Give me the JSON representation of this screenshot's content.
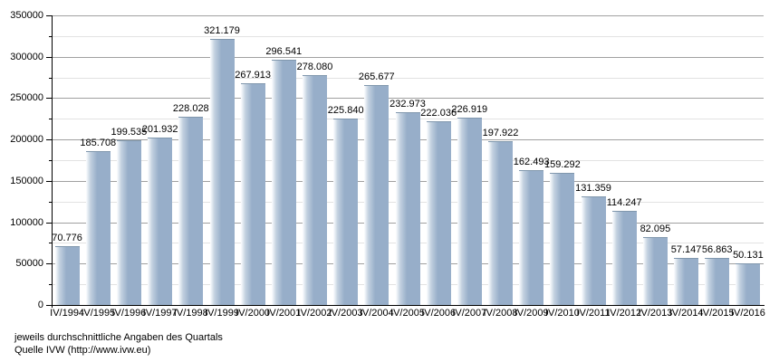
{
  "chart_data": {
    "type": "bar",
    "title": "",
    "xlabel": "",
    "ylabel": "",
    "categories": [
      "IV/1994",
      "IV/1995",
      "IV/1996",
      "IV/1997",
      "IV/1998",
      "IV/1999",
      "IV/2000",
      "IV/2001",
      "IV/2002",
      "IV/2003",
      "IV/2004",
      "IV/2005",
      "IV/2006",
      "IV/2007",
      "IV/2008",
      "IV/2009",
      "IV/2010",
      "IV/2011",
      "IV/2012",
      "IV/2013",
      "IV/2014",
      "IV/2015",
      "IV/2016"
    ],
    "values": [
      70776,
      185708,
      199535,
      201932,
      228028,
      321179,
      267913,
      296541,
      278080,
      225840,
      265677,
      232973,
      222036,
      226919,
      197922,
      162493,
      159292,
      131359,
      114247,
      82095,
      57147,
      56863,
      50131
    ],
    "value_labels": [
      "70.776",
      "185.708",
      "199.535",
      "201.932",
      "228.028",
      "321.179",
      "267.913",
      "296.541",
      "278.080",
      "225.840",
      "265.677",
      "232.973",
      "222.036",
      "226.919",
      "197.922",
      "162.493",
      "159.292",
      "131.359",
      "114.247",
      "82.095",
      "57.147",
      "56.863",
      "50.131"
    ],
    "ylim": [
      0,
      350000
    ],
    "y_major_step": 50000,
    "y_minor_step": 25000,
    "y_tick_labels": [
      "0",
      "50000",
      "100000",
      "150000",
      "200000",
      "250000",
      "300000",
      "350000"
    ],
    "grid": true,
    "legend": false,
    "colors": {
      "bar_main": "#97aec9",
      "bar_gradient_light": "#fdfeff",
      "bar_gradient_mid": "#c3d1e0",
      "bar_top_border": "#8097ad",
      "grid_major": "#a0a0a0",
      "grid_minor": "#e2e2e2",
      "axis": "#000000",
      "text": "#000000"
    }
  },
  "footer": {
    "note": "jeweils durchschnittliche Angaben des Quartals",
    "source": "Quelle IVW (http://www.ivw.eu)"
  }
}
